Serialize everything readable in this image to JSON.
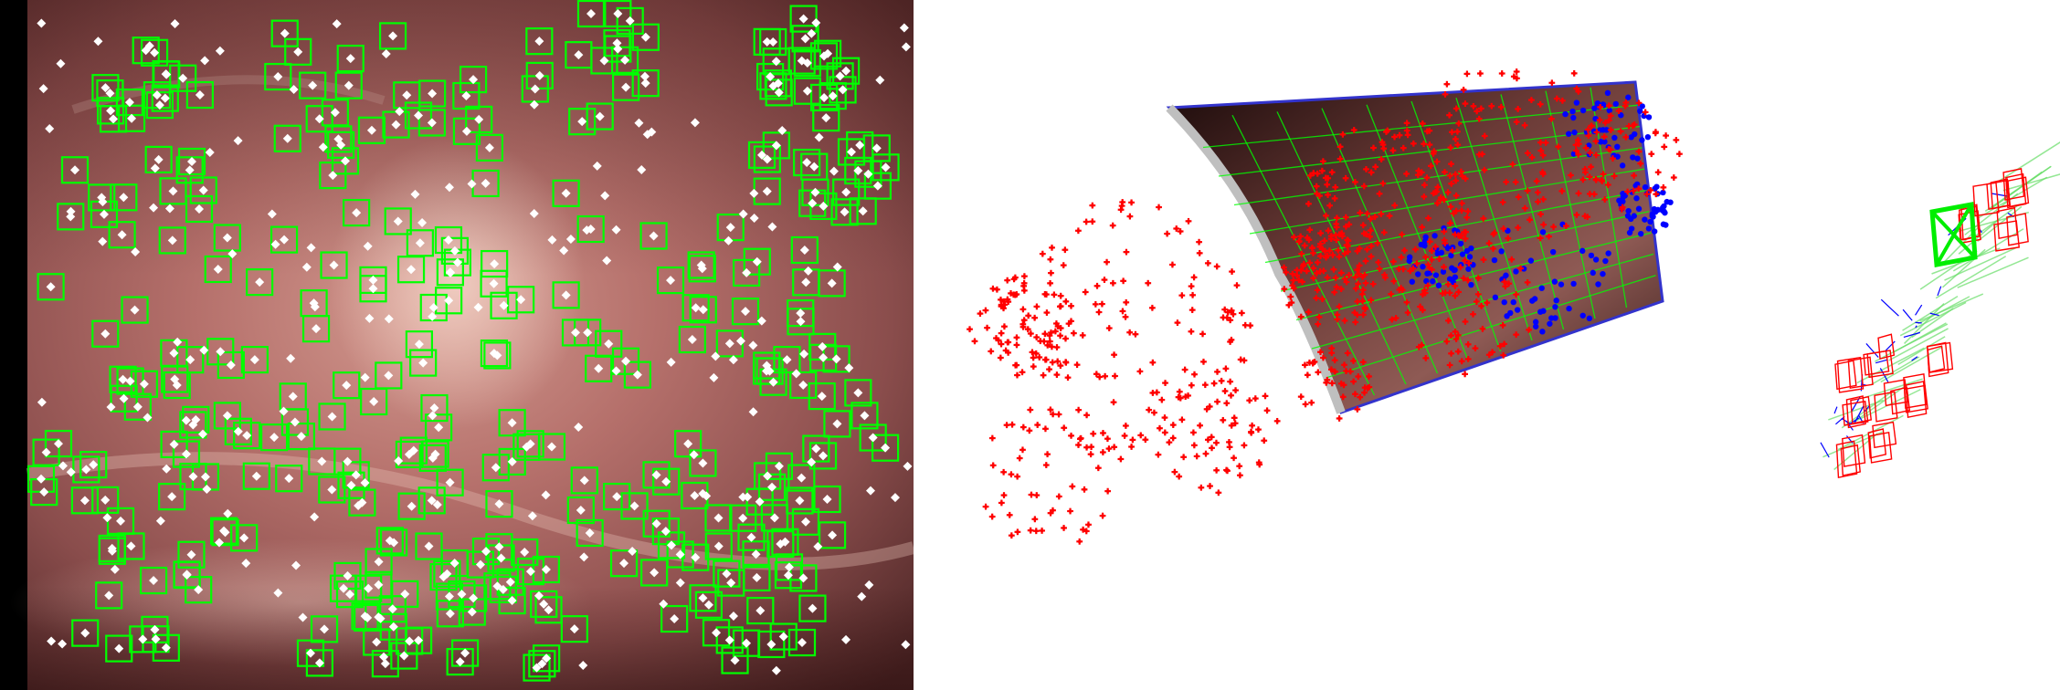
{
  "panels": {
    "camera_view": {
      "feature_box_color": "#00ff00",
      "feature_point_color": "#ffffff",
      "tissue_colors": [
        "#5b2e2e",
        "#8a4d4c",
        "#b5706b",
        "#d9a39a",
        "#e8c2b6"
      ]
    },
    "reconstruction_view": {
      "map_point_color": "#ff0000",
      "tracked_point_color": "#0000ff",
      "mesh_color": "#00ff00",
      "frame_edge_color": "#3333cc"
    },
    "trajectory_view": {
      "keyframe_color": "#ff0000",
      "current_frame_color": "#00ff00",
      "graph_color": "#0000ff",
      "path_color": "#66dd66"
    }
  }
}
